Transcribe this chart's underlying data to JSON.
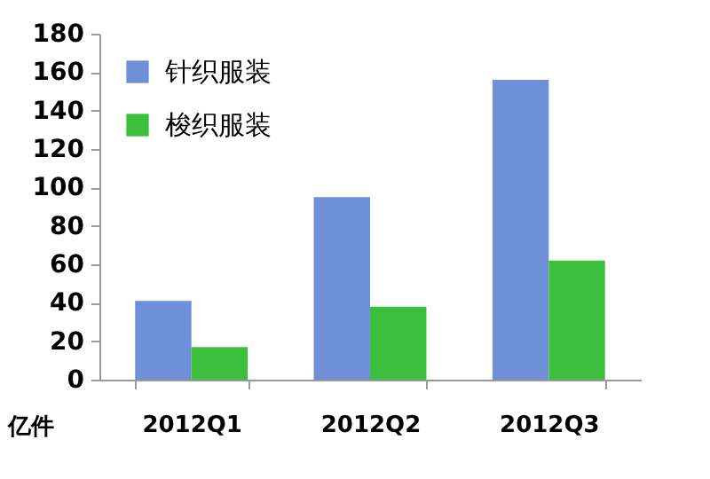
{
  "chart_data": {
    "type": "bar",
    "ylabel": "亿件",
    "categories": [
      "2012Q1",
      "2012Q2",
      "2012Q3"
    ],
    "series": [
      {
        "name": "针织服装",
        "color": "#6f8fd8",
        "values": [
          41,
          95,
          156
        ]
      },
      {
        "name": "梭织服装",
        "color": "#3cbf3c",
        "values": [
          17,
          38,
          62
        ]
      }
    ],
    "ylim": [
      0,
      180
    ],
    "yticks": [
      0,
      20,
      40,
      60,
      80,
      100,
      120,
      140,
      160,
      180
    ],
    "legend": "top left"
  }
}
